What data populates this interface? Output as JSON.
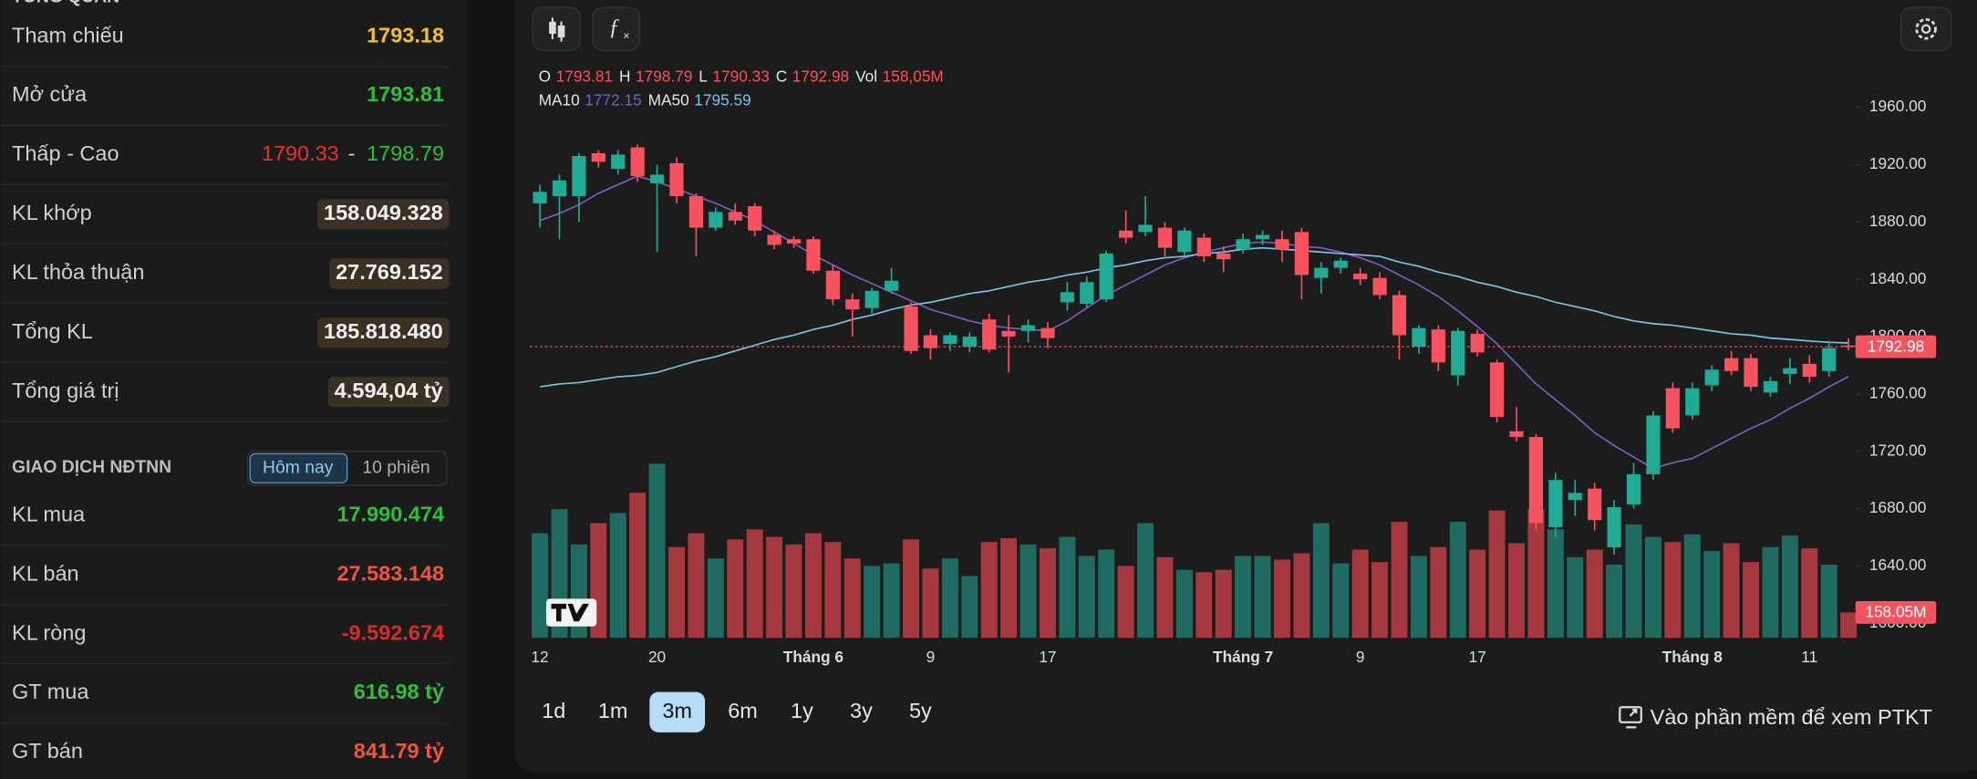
{
  "panel": {
    "section_title": "TỔNG QUAN",
    "rows": [
      {
        "label": "Tham chiếu",
        "value": "1793.18",
        "color": "#f5c02a"
      },
      {
        "label": "Mở cửa",
        "value": "1793.81",
        "color": "#2fbf3f"
      },
      {
        "label": "Thấp - Cao",
        "low": "1790.33",
        "separator": "-",
        "high": "1798.79",
        "low_color": "#e8312a",
        "high_color": "#2fbf3f"
      },
      {
        "label": "KL khớp",
        "value": "158.049.328",
        "badge": true
      },
      {
        "label": "KL thỏa thuận",
        "value": "27.769.152",
        "badge": true
      },
      {
        "label": "Tổng KL",
        "value": "185.818.480",
        "badge": true
      },
      {
        "label": "Tổng giá trị",
        "value": "4.594,04 tỷ",
        "badge": true
      }
    ],
    "foreign": {
      "title": "GIAO DỊCH NĐTNN",
      "tabs": [
        "Hôm nay",
        "10 phiên"
      ],
      "active_tab": 0,
      "rows": [
        {
          "label": "KL mua",
          "value": "17.990.474",
          "color": "#2fbf3f"
        },
        {
          "label": "KL bán",
          "value": "27.583.148",
          "color": "#f0553e"
        },
        {
          "label": "KL ròng",
          "value": "-9.592.674",
          "color": "#dc2a24"
        },
        {
          "label": "GT mua",
          "value": "616.98 tỷ",
          "color": "#2fbf3f"
        },
        {
          "label": "GT bán",
          "value": "841.79 tỷ",
          "color": "#f0553e"
        }
      ]
    }
  },
  "chart_data": {
    "type": "candlestick",
    "categories": [
      "12",
      null,
      null,
      null,
      null,
      null,
      "20",
      null,
      null,
      null,
      null,
      null,
      null,
      null,
      "Tháng 6",
      null,
      null,
      null,
      null,
      null,
      "9",
      null,
      null,
      null,
      null,
      null,
      "17",
      null,
      null,
      null,
      null,
      null,
      null,
      null,
      null,
      null,
      "Tháng 7",
      null,
      null,
      null,
      null,
      null,
      "9",
      null,
      null,
      null,
      null,
      null,
      "17",
      null,
      null,
      null,
      null,
      null,
      null,
      null,
      null,
      null,
      null,
      "Tháng 8",
      null,
      null,
      null,
      null,
      null,
      "11",
      null,
      null
    ],
    "ohlc": {
      "open": [
        1893,
        1898,
        1898,
        1928,
        1917,
        1932,
        1907,
        1921,
        1898,
        1876,
        1887,
        1891,
        1871,
        1868,
        1868,
        1846,
        1826,
        1820,
        1832,
        1821,
        1801,
        1795,
        1793,
        1812,
        1804,
        1804,
        1806,
        1824,
        1823,
        1826,
        1874,
        1873,
        1876,
        1859,
        1869,
        1858,
        1861,
        1868,
        1868,
        1873,
        1841,
        1848,
        1844,
        1841,
        1829,
        1793,
        1805,
        1773,
        1802,
        1782,
        1734,
        1730,
        1667,
        1686,
        1694,
        1653,
        1683,
        1704,
        1764,
        1745,
        1766,
        1785,
        1785,
        1761,
        1774,
        1781,
        1776,
        1793.81
      ],
      "high": [
        1906,
        1913,
        1928,
        1930,
        1930,
        1934,
        1920,
        1925,
        1900,
        1890,
        1893,
        1893,
        1874,
        1870,
        1870,
        1850,
        1830,
        1834,
        1848,
        1824,
        1805,
        1803,
        1803,
        1816,
        1815,
        1812,
        1810,
        1838,
        1842,
        1860,
        1888,
        1898,
        1880,
        1876,
        1872,
        1863,
        1872,
        1874,
        1874,
        1876,
        1852,
        1855,
        1848,
        1845,
        1832,
        1808,
        1808,
        1806,
        1805,
        1784,
        1751,
        1732,
        1705,
        1700,
        1698,
        1686,
        1712,
        1748,
        1768,
        1768,
        1780,
        1790,
        1788,
        1772,
        1785,
        1787,
        1797,
        1798.79
      ],
      "low": [
        1876,
        1868,
        1880,
        1918,
        1913,
        1908,
        1859,
        1893,
        1856,
        1874,
        1878,
        1870,
        1861,
        1862,
        1844,
        1822,
        1800,
        1816,
        1830,
        1788,
        1784,
        1790,
        1789,
        1789,
        1775,
        1796,
        1792,
        1818,
        1820,
        1824,
        1865,
        1870,
        1856,
        1856,
        1852,
        1845,
        1858,
        1864,
        1852,
        1826,
        1830,
        1844,
        1836,
        1826,
        1784,
        1788,
        1776,
        1766,
        1786,
        1740,
        1727,
        1665,
        1660,
        1675,
        1665,
        1648,
        1680,
        1700,
        1733,
        1742,
        1762,
        1773,
        1762,
        1758,
        1767,
        1768,
        1772,
        1790.33
      ],
      "close": [
        1901,
        1909,
        1926,
        1922,
        1927,
        1912,
        1913,
        1898,
        1876,
        1887,
        1881,
        1874,
        1864,
        1865,
        1846,
        1826,
        1819,
        1832,
        1839,
        1790,
        1792,
        1801,
        1800,
        1791,
        1800,
        1808,
        1799,
        1831,
        1838,
        1858,
        1869,
        1878,
        1862,
        1874,
        1856,
        1854,
        1868,
        1871,
        1861,
        1843,
        1848,
        1853,
        1840,
        1829,
        1801,
        1806,
        1782,
        1804,
        1789,
        1744,
        1730,
        1670,
        1700,
        1691,
        1672,
        1681,
        1704,
        1745,
        1736,
        1764,
        1777,
        1776,
        1765,
        1769,
        1778,
        1772,
        1792,
        1792.98
      ]
    },
    "volume": [
      652,
      802,
      582,
      715,
      778,
      904,
      1085,
      566,
      652,
      495,
      613,
      676,
      629,
      582,
      652,
      597,
      495,
      448,
      464,
      613,
      432,
      495,
      385,
      597,
      621,
      582,
      558,
      629,
      511,
      550,
      448,
      715,
      503,
      424,
      409,
      424,
      511,
      511,
      487,
      527,
      715,
      464,
      550,
      472,
      723,
      511,
      566,
      723,
      550,
      794,
      590,
      802,
      676,
      503,
      550,
      456,
      707,
      629,
      597,
      645,
      542,
      590,
      472,
      566,
      637,
      558,
      456,
      158.05
    ],
    "volume_lim": [
      0,
      1100
    ],
    "legend_keys": [
      "O",
      "H",
      "L",
      "C",
      "Vol"
    ],
    "legend_volume_label": "158,05M",
    "volume_tag_label": "158.05M",
    "ma": [
      {
        "name": "MA10",
        "color": "#7a5fc0",
        "values": [
          1881,
          1886,
          1892,
          1900,
          1906,
          1912,
          1908,
          1903,
          1898,
          1893,
          1887,
          1881,
          1873,
          1865,
          1857,
          1850,
          1843,
          1837,
          1831,
          1825,
          1819,
          1815,
          1811,
          1808,
          1806,
          1805,
          1804,
          1811,
          1820,
          1829,
          1836,
          1843,
          1850,
          1855,
          1859,
          1862,
          1865,
          1866,
          1865,
          1863,
          1862,
          1859,
          1855,
          1850,
          1843,
          1836,
          1828,
          1818,
          1807,
          1795,
          1781,
          1767,
          1756,
          1745,
          1733,
          1724,
          1716,
          1708,
          1712,
          1715,
          1722,
          1729,
          1736,
          1742,
          1750,
          1757,
          1765,
          1772.15
        ]
      },
      {
        "name": "MA50",
        "color": "#7ec3e6",
        "values": [
          1765,
          1767,
          1768,
          1770,
          1772,
          1773,
          1775,
          1779,
          1783,
          1786,
          1790,
          1794,
          1798,
          1801,
          1805,
          1808,
          1812,
          1815,
          1819,
          1822,
          1824,
          1827,
          1830,
          1832,
          1835,
          1838,
          1840,
          1843,
          1845,
          1848,
          1850,
          1853,
          1855,
          1856,
          1858,
          1859,
          1861,
          1862,
          1861,
          1860,
          1859,
          1858,
          1857,
          1856,
          1852,
          1849,
          1845,
          1842,
          1838,
          1835,
          1831,
          1828,
          1824,
          1821,
          1818,
          1814,
          1811,
          1809,
          1808,
          1806,
          1804,
          1802,
          1801,
          1799,
          1798,
          1797,
          1796,
          1795.59
        ]
      }
    ],
    "up_color": "#22ab94",
    "down_color": "#f7525f",
    "ylim": [
      1600,
      1990
    ],
    "yticks": [
      {
        "value": 1600,
        "label": "1600.00"
      },
      {
        "value": 1640,
        "label": "1640.00"
      },
      {
        "value": 1680,
        "label": "1680.00"
      },
      {
        "value": 1720,
        "label": "1720.00"
      },
      {
        "value": 1760,
        "label": "1760.00"
      },
      {
        "value": 1800,
        "label": "1800.00"
      },
      {
        "value": 1840,
        "label": "1840.00"
      },
      {
        "value": 1880,
        "label": "1880.00"
      },
      {
        "value": 1920,
        "label": "1920.00"
      },
      {
        "value": 1960,
        "label": "1960.00"
      }
    ],
    "grid": false
  },
  "toolbar": {
    "ranges": [
      "1d",
      "1m",
      "3m",
      "6m",
      "1y",
      "3y",
      "5y"
    ],
    "active_range": 2,
    "link": "Vào phần mềm để xem PTKT"
  }
}
